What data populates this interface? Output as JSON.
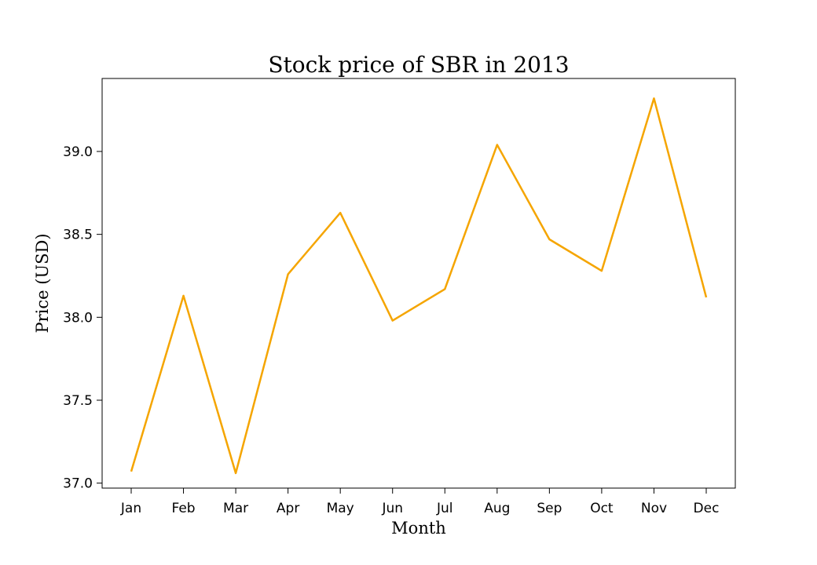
{
  "chart_data": {
    "type": "line",
    "title": "Stock price of SBR in 2013",
    "xlabel": "Month",
    "ylabel": "Price (USD)",
    "categories": [
      "Jan",
      "Feb",
      "Mar",
      "Apr",
      "May",
      "Jun",
      "Jul",
      "Aug",
      "Sep",
      "Oct",
      "Nov",
      "Dec"
    ],
    "series": [
      {
        "values": [
          37.07,
          38.13,
          37.06,
          38.26,
          38.63,
          37.98,
          38.17,
          39.04,
          38.47,
          38.28,
          39.32,
          38.12
        ],
        "color": "#f5a500"
      }
    ],
    "yticks": [
      "37.0",
      "37.5",
      "38.0",
      "38.5",
      "39.0"
    ],
    "ylim": [
      36.97,
      39.44
    ],
    "grid": false,
    "legend": false
  }
}
